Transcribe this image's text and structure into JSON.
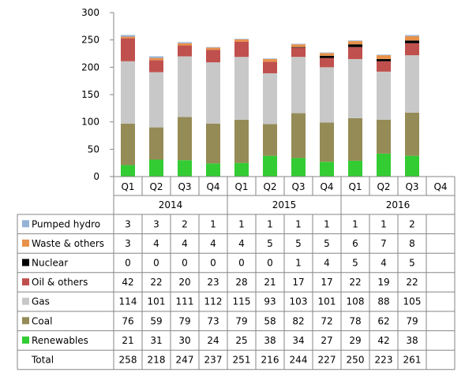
{
  "chart_data": {
    "type": "bar",
    "stacked": true,
    "ylim": [
      0,
      300
    ],
    "y_ticks": [
      0,
      50,
      100,
      150,
      200,
      250,
      300
    ],
    "grid": false,
    "years": [
      {
        "label": "2014",
        "quarters": [
          "Q1",
          "Q2",
          "Q3",
          "Q4"
        ]
      },
      {
        "label": "2015",
        "quarters": [
          "Q1",
          "Q2",
          "Q3",
          "Q4"
        ]
      },
      {
        "label": "2016",
        "quarters": [
          "Q1",
          "Q2",
          "Q3",
          "Q4"
        ]
      }
    ],
    "series": [
      {
        "name": "Pumped hydro",
        "color": "#95b3d7",
        "values": [
          3,
          3,
          2,
          1,
          1,
          1,
          1,
          1,
          1,
          1,
          2,
          null
        ]
      },
      {
        "name": "Waste & others",
        "color": "#e8914a",
        "values": [
          3,
          4,
          4,
          4,
          4,
          5,
          5,
          5,
          6,
          7,
          8,
          null
        ]
      },
      {
        "name": "Nuclear",
        "color": "#000000",
        "values": [
          0,
          0,
          0,
          0,
          0,
          0,
          1,
          4,
          5,
          4,
          5,
          null
        ]
      },
      {
        "name": "Oil & others",
        "color": "#c0504d",
        "values": [
          42,
          22,
          20,
          23,
          28,
          21,
          17,
          17,
          22,
          19,
          22,
          null
        ]
      },
      {
        "name": "Gas",
        "color": "#c8c8c8",
        "values": [
          114,
          101,
          111,
          112,
          115,
          93,
          103,
          101,
          108,
          88,
          105,
          null
        ]
      },
      {
        "name": "Coal",
        "color": "#958b56",
        "values": [
          76,
          59,
          79,
          73,
          79,
          58,
          82,
          72,
          78,
          62,
          79,
          null
        ]
      },
      {
        "name": "Renewables",
        "color": "#33cc33",
        "values": [
          21,
          31,
          30,
          24,
          25,
          38,
          34,
          27,
          29,
          42,
          38,
          null
        ]
      }
    ],
    "total": {
      "name": "Total",
      "values": [
        258,
        218,
        247,
        237,
        251,
        216,
        244,
        227,
        250,
        223,
        261,
        null
      ]
    }
  }
}
